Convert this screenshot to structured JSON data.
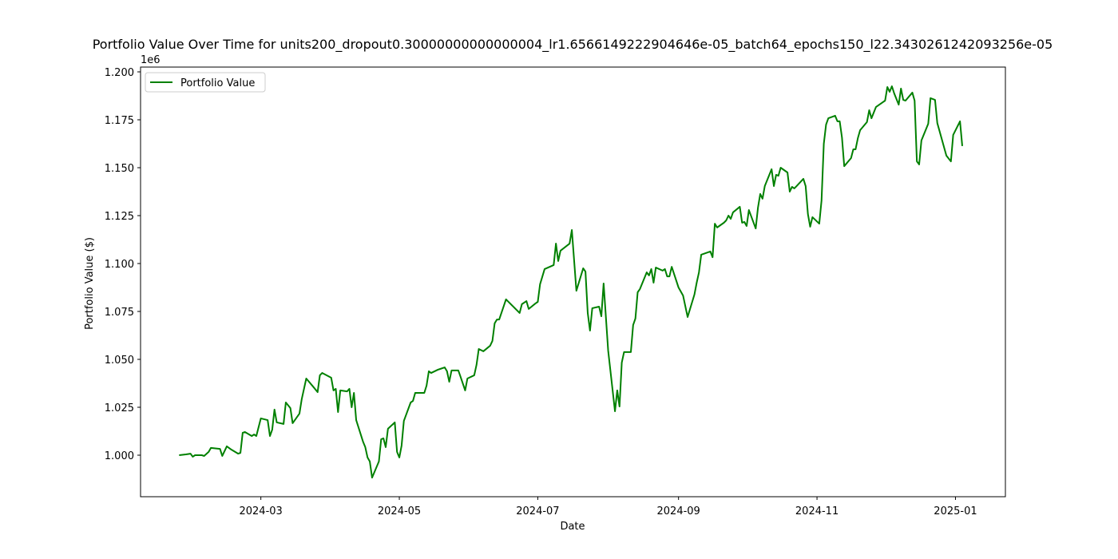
{
  "chart_data": {
    "type": "line",
    "title": "Portfolio Value Over Time for units200_dropout0.30000000000000004_lr1.6566149222904646e-05_batch64_epochs150_l22.3430261242093256e-05",
    "xlabel": "Date",
    "ylabel": "Portfolio Value ($)",
    "y_offset_text": "1e6",
    "legend": "upper left",
    "xlim": [
      19730,
      20111
    ],
    "xticks": [
      {
        "value": 19783,
        "label": "2024-03"
      },
      {
        "value": 19844,
        "label": "2024-05"
      },
      {
        "value": 19905,
        "label": "2024-07"
      },
      {
        "value": 19967,
        "label": "2024-09"
      },
      {
        "value": 20028,
        "label": "2024-11"
      },
      {
        "value": 20089,
        "label": "2025-01"
      }
    ],
    "ylim": [
      978333,
      1202500
    ],
    "yticks": [
      {
        "value": 1000000,
        "label": "1.000"
      },
      {
        "value": 1025000,
        "label": "1.025"
      },
      {
        "value": 1050000,
        "label": "1.050"
      },
      {
        "value": 1075000,
        "label": "1.075"
      },
      {
        "value": 1100000,
        "label": "1.100"
      },
      {
        "value": 1125000,
        "label": "1.125"
      },
      {
        "value": 1150000,
        "label": "1.150"
      },
      {
        "value": 1175000,
        "label": "1.175"
      },
      {
        "value": 1200000,
        "label": "1.200"
      }
    ],
    "x": [
      19747,
      19750,
      19752,
      19753,
      19754,
      19757,
      19758,
      19760,
      19761,
      19765,
      19766,
      19768,
      19770,
      19773,
      19774,
      19775,
      19776,
      19779,
      19780,
      19781,
      19783,
      19786,
      19787,
      19788,
      19789,
      19790,
      19793,
      19794,
      19796,
      19797,
      19800,
      19801,
      19803,
      19806,
      19808,
      19809,
      19810,
      19814,
      19815,
      19816,
      19817,
      19818,
      19821,
      19822,
      19823,
      19824,
      19825,
      19828,
      19829,
      19830,
      19831,
      19832,
      19835,
      19836,
      19837,
      19838,
      19839,
      19842,
      19843,
      19844,
      19845,
      19846,
      19849,
      19850,
      19851,
      19854,
      19855,
      19856,
      19857,
      19858,
      19861,
      19862,
      19864,
      19865,
      19866,
      19867,
      19870,
      19871,
      19873,
      19874,
      19877,
      19878,
      19879,
      19881,
      19884,
      19885,
      19886,
      19887,
      19888,
      19891,
      19897,
      19898,
      19900,
      19901,
      19904,
      19905,
      19906,
      19908,
      19912,
      19913,
      19914,
      19915,
      19919,
      19920,
      19921,
      19922,
      19925,
      19926,
      19927,
      19928,
      19929,
      19932,
      19933,
      19934,
      19936,
      19939,
      19940,
      19941,
      19942,
      19943,
      19946,
      19947,
      19948,
      19949,
      19950,
      19953,
      19954,
      19955,
      19956,
      19957,
      19960,
      19961,
      19962,
      19963,
      19964,
      19967,
      19969,
      19971,
      19974,
      19975,
      19976,
      19977,
      19981,
      19982,
      19983,
      19984,
      19987,
      19988,
      19989,
      19990,
      19991,
      19994,
      19995,
      19996,
      19997,
      19998,
      20001,
      20002,
      20003,
      20004,
      20005,
      20008,
      20009,
      20010,
      20011,
      20012,
      20015,
      20016,
      20017,
      20018,
      20019,
      20022,
      20023,
      20024,
      20025,
      20026,
      20029,
      20030,
      20031,
      20032,
      20033,
      20036,
      20037,
      20038,
      20039,
      20040,
      20043,
      20044,
      20045,
      20046,
      20047,
      20050,
      20051,
      20052,
      20054,
      20058,
      20059,
      20060,
      20061,
      20062,
      20064,
      20065,
      20066,
      20067,
      20070,
      20071,
      20072,
      20073,
      20074,
      20077,
      20078,
      20080,
      20081,
      20085,
      20087,
      20088,
      20091,
      20092
    ],
    "series": [
      {
        "name": "Portfolio Value",
        "color": "#008000",
        "values": [
          1000000,
          1000400,
          1000800,
          999200,
          1000000,
          1000000,
          999600,
          1001700,
          1003800,
          1003300,
          999600,
          1004600,
          1002900,
          1000800,
          1001200,
          1011700,
          1012100,
          1010000,
          1010800,
          1010000,
          1019200,
          1018300,
          1010000,
          1013300,
          1023800,
          1017100,
          1016300,
          1027500,
          1024600,
          1016700,
          1021700,
          1029200,
          1040000,
          1035800,
          1032900,
          1041700,
          1042900,
          1040400,
          1033800,
          1034600,
          1022500,
          1033800,
          1033300,
          1034600,
          1025000,
          1032500,
          1018300,
          1007100,
          1004200,
          998800,
          996700,
          988300,
          996700,
          1008300,
          1008800,
          1004200,
          1013800,
          1017100,
          1001700,
          998800,
          1005000,
          1017900,
          1027500,
          1028300,
          1032500,
          1032500,
          1032500,
          1036300,
          1043800,
          1042900,
          1044600,
          1045000,
          1045800,
          1043800,
          1038300,
          1044200,
          1044200,
          1040800,
          1033800,
          1040000,
          1041700,
          1047100,
          1055400,
          1054200,
          1057100,
          1059600,
          1068800,
          1070800,
          1070800,
          1081300,
          1074200,
          1078800,
          1080400,
          1076300,
          1079200,
          1080000,
          1089200,
          1097100,
          1099200,
          1110400,
          1101300,
          1106700,
          1110400,
          1117500,
          1101700,
          1085800,
          1097500,
          1095800,
          1074200,
          1065000,
          1076700,
          1077500,
          1072500,
          1089600,
          1054600,
          1022900,
          1033800,
          1025400,
          1048300,
          1053800,
          1053800,
          1067900,
          1071300,
          1085000,
          1086700,
          1095400,
          1093800,
          1097100,
          1090000,
          1097900,
          1096300,
          1097100,
          1093300,
          1093300,
          1098300,
          1087500,
          1083300,
          1072100,
          1083800,
          1090000,
          1095400,
          1104600,
          1106300,
          1103300,
          1120800,
          1118800,
          1121300,
          1122500,
          1125000,
          1123300,
          1126700,
          1129600,
          1121300,
          1121700,
          1119600,
          1127900,
          1118300,
          1129200,
          1136300,
          1133800,
          1140400,
          1149200,
          1140400,
          1146300,
          1145800,
          1150000,
          1147500,
          1137500,
          1140000,
          1139200,
          1140400,
          1144200,
          1140400,
          1125800,
          1119200,
          1124200,
          1120800,
          1132900,
          1162500,
          1172500,
          1175800,
          1177100,
          1174200,
          1174200,
          1165800,
          1150800,
          1155000,
          1159600,
          1159600,
          1165400,
          1169600,
          1173800,
          1180000,
          1175800,
          1181700,
          1185000,
          1192100,
          1189600,
          1192500,
          1188800,
          1182900,
          1191300,
          1185400,
          1185000,
          1189200,
          1185000,
          1153300,
          1151700,
          1164200,
          1172900,
          1186300,
          1185400,
          1173300,
          1156300,
          1153300,
          1167100,
          1174200,
          1161300
        ]
      }
    ]
  }
}
